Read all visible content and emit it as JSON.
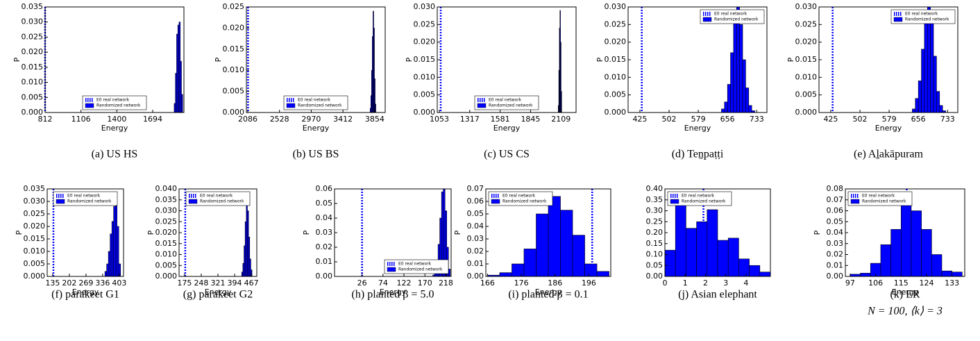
{
  "chart_data": [
    {
      "type": "histogram",
      "caption": "(a) US HS",
      "xlabel": "Energy",
      "ylabel": "P",
      "e0": 812,
      "e0_label": "E0 real network",
      "hist_label": "Randomized network",
      "color": "#0000ff",
      "legend_loc": "lower center",
      "bins": [
        1870,
        1880,
        1890,
        1900,
        1910,
        1920,
        1930,
        1940
      ],
      "values": [
        0.003,
        0.013,
        0.026,
        0.029,
        0.03,
        0.017,
        0.006
      ],
      "xlim": [
        812,
        1950
      ],
      "xticks": [
        812,
        1106,
        1400,
        1694
      ],
      "ylim": [
        0,
        0.035
      ],
      "yticks": [
        {
          "value": 0,
          "label": "0.000"
        },
        0.005,
        {
          "value": 0.01,
          "label": "0.010"
        },
        0.015,
        {
          "value": 0.02,
          "label": "0.020"
        },
        0.025,
        {
          "value": 0.03,
          "label": "0.030"
        },
        0.035
      ]
    },
    {
      "type": "histogram",
      "caption": "(b) US BS",
      "xlabel": "Energy",
      "ylabel": "P",
      "e0": 2090,
      "e0_label": "E0 real network",
      "hist_label": "Randomized network",
      "color": "#0000ff",
      "legend_loc": "lower center",
      "bins": [
        3790,
        3800,
        3810,
        3820,
        3830,
        3840,
        3850,
        3860,
        3870
      ],
      "values": [
        0.001,
        0.004,
        0.01,
        0.018,
        0.024,
        0.02,
        0.008,
        0.002
      ],
      "xlim": [
        2067,
        4000
      ],
      "xticks": [
        2086,
        2528,
        2970,
        3412,
        3854
      ],
      "ylim": [
        0,
        0.025
      ],
      "yticks": [
        {
          "value": 0,
          "label": "0.000"
        },
        0.005,
        {
          "value": 0.01,
          "label": "0.010"
        },
        0.015,
        {
          "value": 0.02,
          "label": "0.020"
        },
        0.025
      ]
    },
    {
      "type": "histogram",
      "caption": "(c) US CS",
      "xlabel": "Energy",
      "ylabel": "P",
      "e0": 1065,
      "e0_label": "E0 real network",
      "hist_label": "Randomized network",
      "color": "#0000ff",
      "legend_loc": "lower center",
      "bins": [
        2085,
        2090,
        2095,
        2100,
        2105,
        2110,
        2115
      ],
      "values": [
        0.002,
        0.012,
        0.024,
        0.029,
        0.02,
        0.006
      ],
      "xlim": [
        1035,
        2240
      ],
      "xticks": [
        1053,
        1317,
        1581,
        1845,
        2109
      ],
      "ylim": [
        0,
        0.03
      ],
      "yticks": [
        {
          "value": 0,
          "label": "0.000"
        },
        0.005,
        {
          "value": 0.01,
          "label": "0.010"
        },
        0.015,
        {
          "value": 0.02,
          "label": "0.020"
        },
        0.025,
        {
          "value": 0.03,
          "label": "0.030"
        }
      ]
    },
    {
      "type": "histogram",
      "caption": "(d) Teṉpaṭṭi",
      "xlabel": "Energy",
      "ylabel": "P",
      "e0": 430,
      "e0_label": "E0 real network",
      "hist_label": "Randomized network",
      "color": "#0000ff",
      "legend_loc": "upper right",
      "bins": [
        640,
        648,
        656,
        664,
        672,
        680,
        688,
        696,
        704,
        712,
        720,
        728
      ],
      "values": [
        0.001,
        0.003,
        0.008,
        0.017,
        0.027,
        0.03,
        0.025,
        0.015,
        0.007,
        0.002,
        0.0005
      ],
      "xlim": [
        394,
        760
      ],
      "xticks": [
        425,
        502,
        579,
        656,
        733
      ],
      "ylim": [
        0,
        0.03
      ],
      "yticks": [
        {
          "value": 0,
          "label": "0.000"
        },
        0.005,
        {
          "value": 0.01,
          "label": "0.010"
        },
        0.015,
        {
          "value": 0.02,
          "label": "0.020"
        },
        0.025,
        {
          "value": 0.03,
          "label": "0.030"
        }
      ]
    },
    {
      "type": "histogram",
      "caption": "(e) Aḻakāpuram",
      "xlabel": "Energy",
      "ylabel": "P",
      "e0": 430,
      "e0_label": "E0 real network",
      "hist_label": "Randomized network",
      "color": "#0000ff",
      "legend_loc": "upper right",
      "bins": [
        640,
        648,
        656,
        664,
        672,
        680,
        688,
        696,
        704,
        712,
        720,
        728
      ],
      "values": [
        0.001,
        0.004,
        0.009,
        0.018,
        0.026,
        0.03,
        0.026,
        0.016,
        0.006,
        0.002,
        0.0005
      ],
      "xlim": [
        394,
        760
      ],
      "xticks": [
        425,
        502,
        579,
        656,
        733
      ],
      "ylim": [
        0,
        0.03
      ],
      "yticks": [
        {
          "value": 0,
          "label": "0.000"
        },
        0.005,
        {
          "value": 0.01,
          "label": "0.010"
        },
        0.015,
        {
          "value": 0.02,
          "label": "0.020"
        },
        0.025,
        {
          "value": 0.03,
          "label": "0.030"
        }
      ]
    },
    {
      "type": "histogram",
      "caption": "(f) parakeet G1",
      "xlabel": "Energy",
      "ylabel": "P",
      "e0": 138,
      "e0_label": "E0 real network",
      "hist_label": "Randomized network",
      "color": "#0000ff",
      "legend_loc": "upper center",
      "bins": [
        345,
        352,
        359,
        366,
        373,
        380,
        387,
        394,
        401,
        408
      ],
      "values": [
        0.002,
        0.005,
        0.01,
        0.017,
        0.022,
        0.028,
        0.032,
        0.02,
        0.005
      ],
      "xlim": [
        113,
        420
      ],
      "xticks": [
        135,
        202,
        269,
        336,
        403
      ],
      "ylim": [
        0,
        0.035
      ],
      "yticks": [
        {
          "value": 0,
          "label": "0.000"
        },
        0.005,
        {
          "value": 0.01,
          "label": "0.010"
        },
        0.015,
        {
          "value": 0.02,
          "label": "0.020"
        },
        0.025,
        {
          "value": 0.03,
          "label": "0.030"
        },
        0.035
      ]
    },
    {
      "type": "histogram",
      "caption": "(g) parakeet G2",
      "xlabel": "Energy",
      "ylabel": "P",
      "e0": 178,
      "e0_label": "E0 real network",
      "hist_label": "Randomized network",
      "color": "#0000ff",
      "legend_loc": "upper center",
      "bins": [
        425,
        430,
        435,
        440,
        445,
        450,
        455,
        460,
        465,
        470
      ],
      "values": [
        0.002,
        0.006,
        0.014,
        0.025,
        0.036,
        0.03,
        0.018,
        0.008,
        0.003
      ],
      "xlim": [
        151,
        491
      ],
      "xticks": [
        175,
        248,
        321,
        394,
        467
      ],
      "ylim": [
        0,
        0.04
      ],
      "yticks": [
        {
          "value": 0,
          "label": "0.000"
        },
        0.005,
        {
          "value": 0.01,
          "label": "0.010"
        },
        0.015,
        {
          "value": 0.02,
          "label": "0.020"
        },
        0.025,
        {
          "value": 0.03,
          "label": "0.030"
        },
        0.035,
        {
          "value": 0.04,
          "label": "0.040"
        }
      ]
    },
    {
      "type": "histogram",
      "caption": "(h) planted β = 5.0",
      "xlabel": "Energy",
      "ylabel": "P",
      "e0": 26,
      "e0_label": "E0 real network",
      "hist_label": "Randomized network",
      "color": "#0000ff",
      "legend_loc": "lower right",
      "bins": [
        188,
        192,
        196,
        200,
        204,
        208,
        212,
        216,
        220,
        224,
        228
      ],
      "values": [
        0.001,
        0.004,
        0.01,
        0.022,
        0.04,
        0.058,
        0.06,
        0.045,
        0.02,
        0.005
      ],
      "xlim": [
        -37,
        230
      ],
      "xticks": [
        26,
        74,
        122,
        170,
        218
      ],
      "ylim": [
        0,
        0.06
      ],
      "yticks": [
        {
          "value": 0,
          "label": "0.00"
        },
        0.01,
        0.02,
        0.03,
        0.04,
        0.05,
        0.06
      ]
    },
    {
      "type": "histogram",
      "caption": "(i) planted β = 0.1",
      "xlabel": "Energy",
      "ylabel": "P",
      "e0": 197,
      "e0_label": "E0 real network",
      "hist_label": "Randomized network",
      "color": "#0000ff",
      "legend_loc": "upper left",
      "bins": [
        166,
        169.6,
        173.2,
        176.8,
        180.4,
        184,
        187.6,
        191.2,
        194.8,
        198.4,
        202
      ],
      "values": [
        0.001,
        0.003,
        0.01,
        0.022,
        0.05,
        0.064,
        0.053,
        0.033,
        0.01,
        0.004
      ],
      "xlim": [
        165.5,
        202.5
      ],
      "xticks": [
        166,
        176,
        186,
        196
      ],
      "ylim": [
        0,
        0.07
      ],
      "yticks": [
        {
          "value": 0,
          "label": "0.00"
        },
        0.01,
        0.02,
        0.03,
        0.04,
        0.05,
        0.06,
        0.07
      ]
    },
    {
      "type": "histogram",
      "caption": "(j) Asian elephant",
      "e0": 1.9,
      "e0_label": "E0 real network",
      "hist_label": "Randomized network",
      "color": "#0000ff",
      "legend_loc": "upper left",
      "bins": [
        0,
        0.52,
        1.04,
        1.56,
        2.08,
        2.6,
        3.12,
        3.64,
        4.16,
        4.68,
        5.2
      ],
      "values": [
        0.12,
        0.385,
        0.22,
        0.25,
        0.305,
        0.165,
        0.175,
        0.08,
        0.05,
        0.02
      ],
      "xlim": [
        0,
        5.2
      ],
      "xticks": [
        0,
        1,
        2,
        3,
        4
      ],
      "ylim": [
        0,
        0.4
      ],
      "yticks": [
        {
          "value": 0,
          "label": "0.00"
        },
        0.05,
        {
          "value": 0.1,
          "label": "0.10"
        },
        0.15,
        {
          "value": 0.2,
          "label": "0.20"
        },
        0.25,
        {
          "value": 0.3,
          "label": "0.30"
        },
        0.35,
        {
          "value": 0.4,
          "label": "0.40"
        }
      ]
    },
    {
      "type": "histogram",
      "caption": "(k) ER",
      "caption2": "N = 100, ⟨k⟩ = 3",
      "xlabel": "Energy",
      "ylabel": "P",
      "e0": 117,
      "e0_label": "E0 real network",
      "hist_label": "Randomized network",
      "color": "#0000ff",
      "legend_loc": "upper left",
      "bins": [
        97,
        100.6,
        104.2,
        107.8,
        111.4,
        115,
        118.6,
        122.2,
        125.8,
        129.4,
        133,
        136.6
      ],
      "values": [
        0.002,
        0.003,
        0.012,
        0.029,
        0.043,
        0.07,
        0.06,
        0.043,
        0.02,
        0.005,
        0.004
      ],
      "xlim": [
        95.3,
        137.5
      ],
      "xticks": [
        97,
        106,
        115,
        124,
        133
      ],
      "ylim": [
        0,
        0.08
      ],
      "yticks": [
        {
          "value": 0,
          "label": "0.00"
        },
        0.01,
        0.02,
        0.03,
        0.04,
        0.05,
        0.06,
        0.07,
        0.08
      ]
    }
  ]
}
